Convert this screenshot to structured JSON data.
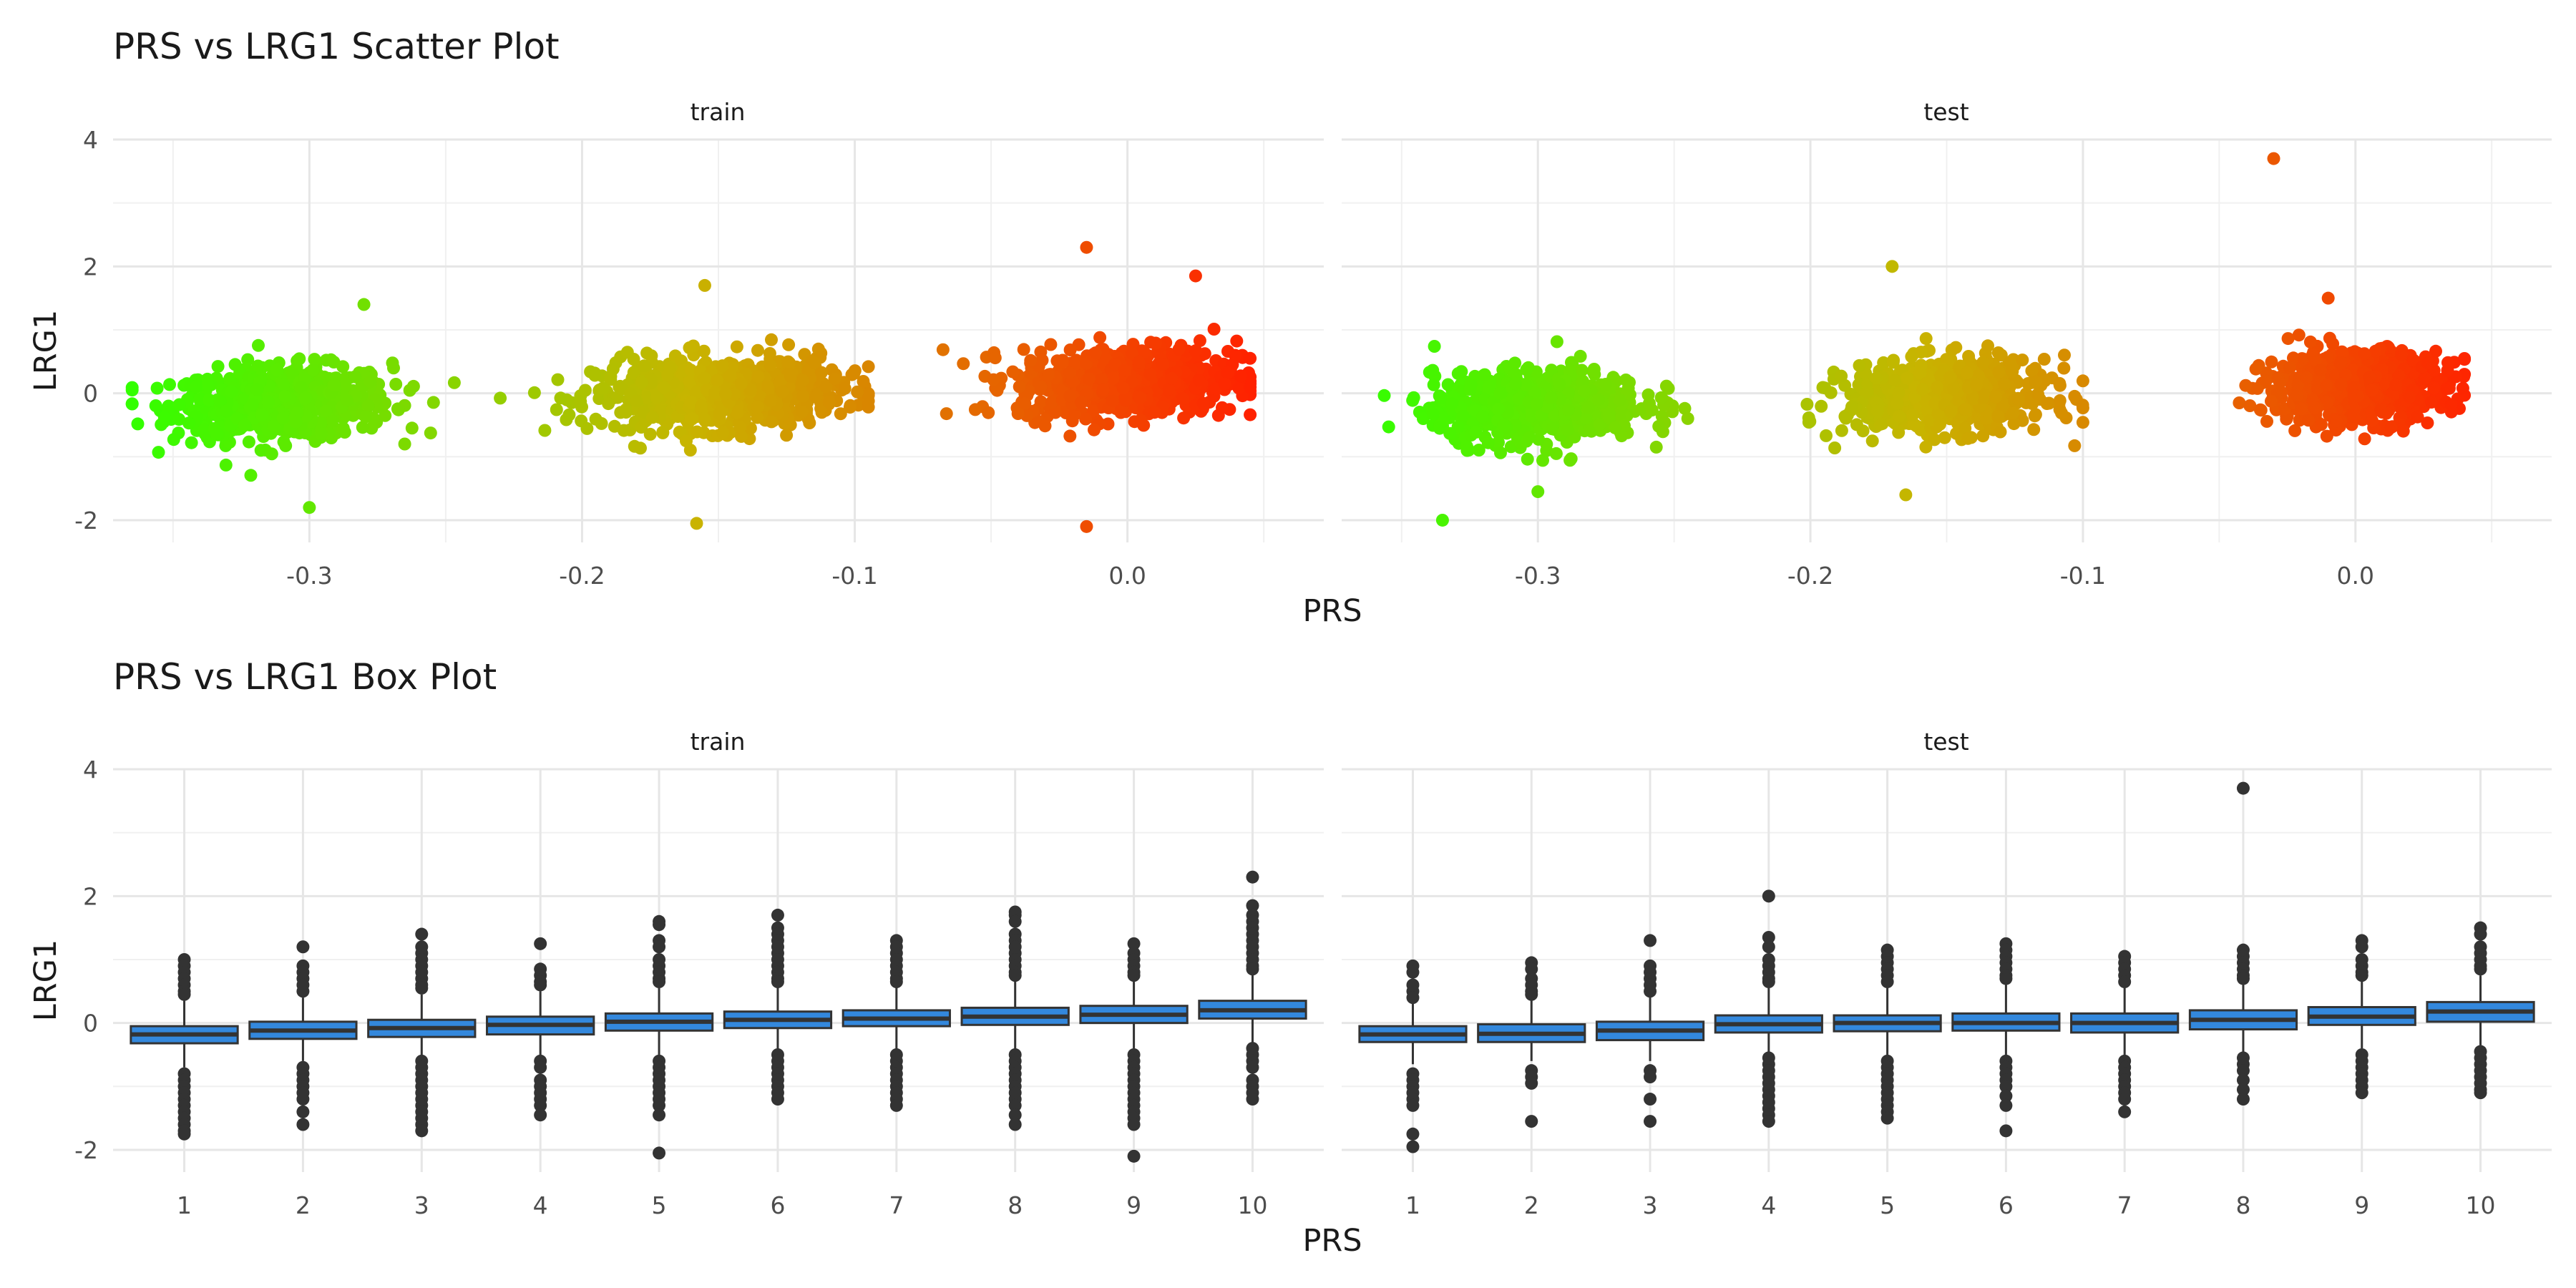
{
  "chart_data": [
    {
      "type": "scatter",
      "title": "PRS vs LRG1 Scatter Plot",
      "xlabel": "PRS",
      "ylabel": "LRG1",
      "xlim": [
        -0.372,
        0.072
      ],
      "ylim": [
        -2.35,
        4.0
      ],
      "x_ticks": [
        -0.3,
        -0.2,
        -0.1,
        0.0
      ],
      "x_tick_labels": [
        "-0.3",
        "-0.2",
        "-0.1",
        "0.0"
      ],
      "y_ticks": [
        -2,
        0,
        2,
        4
      ],
      "y_tick_labels": [
        "-2",
        "0",
        "2",
        "4"
      ],
      "grid": true,
      "color_gradient": [
        "#33ff00",
        "#c8b400",
        "#ff2200"
      ],
      "panels": [
        {
          "name": "train",
          "groups": [
            {
              "x_range": [
                -0.365,
                -0.245
              ],
              "center_x": -0.31,
              "center_y": -0.15
            },
            {
              "x_range": [
                -0.23,
                -0.095
              ],
              "center_x": -0.15,
              "center_y": 0.0
            },
            {
              "x_range": [
                -0.075,
                0.045
              ],
              "center_x": 0.0,
              "center_y": 0.2
            }
          ],
          "outliers": [
            {
              "x": -0.015,
              "y": 2.3
            },
            {
              "x": -0.015,
              "y": -2.1
            },
            {
              "x": -0.158,
              "y": -2.05
            },
            {
              "x": -0.3,
              "y": -1.8
            },
            {
              "x": 0.025,
              "y": 1.85
            },
            {
              "x": -0.155,
              "y": 1.7
            },
            {
              "x": -0.28,
              "y": 1.4
            }
          ]
        },
        {
          "name": "test",
          "groups": [
            {
              "x_range": [
                -0.36,
                -0.245
              ],
              "center_x": -0.3,
              "center_y": -0.2
            },
            {
              "x_range": [
                -0.21,
                -0.1
              ],
              "center_x": -0.15,
              "center_y": -0.05
            },
            {
              "x_range": [
                -0.06,
                0.04
              ],
              "center_x": 0.0,
              "center_y": 0.1
            }
          ],
          "outliers": [
            {
              "x": -0.03,
              "y": 3.7
            },
            {
              "x": -0.17,
              "y": 2.0
            },
            {
              "x": -0.335,
              "y": -2.0
            },
            {
              "x": -0.3,
              "y": -1.55
            },
            {
              "x": -0.165,
              "y": -1.6
            },
            {
              "x": -0.01,
              "y": 1.5
            }
          ]
        }
      ]
    },
    {
      "type": "box",
      "title": "PRS vs LRG1 Box Plot",
      "xlabel": "PRS",
      "ylabel": "LRG1",
      "categories": [
        "1",
        "2",
        "3",
        "4",
        "5",
        "6",
        "7",
        "8",
        "9",
        "10"
      ],
      "ylim": [
        -2.35,
        4.0
      ],
      "y_ticks": [
        -2,
        0,
        2,
        4
      ],
      "y_tick_labels": [
        "-2",
        "0",
        "2",
        "4"
      ],
      "box_color": "#3388dd",
      "grid": true,
      "panels": [
        {
          "name": "train",
          "boxes": [
            {
              "q1": -0.32,
              "median": -0.18,
              "q3": -0.05,
              "whisker_low": -0.7,
              "whisker_high": 0.35,
              "outliers": [
                1.0,
                0.9,
                0.8,
                0.7,
                0.6,
                0.5,
                0.45,
                -0.8,
                -0.9,
                -1.0,
                -1.1,
                -1.2,
                -1.3,
                -1.4,
                -1.5,
                -1.6,
                -1.7,
                -1.75
              ]
            },
            {
              "q1": -0.25,
              "median": -0.12,
              "q3": 0.02,
              "whisker_low": -0.6,
              "whisker_high": 0.4,
              "outliers": [
                1.2,
                0.9,
                0.8,
                0.7,
                0.6,
                0.5,
                -0.7,
                -0.8,
                -0.9,
                -1.0,
                -1.1,
                -1.2,
                -1.4,
                -1.6
              ]
            },
            {
              "q1": -0.22,
              "median": -0.08,
              "q3": 0.05,
              "whisker_low": -0.55,
              "whisker_high": 0.45,
              "outliers": [
                1.4,
                1.2,
                1.1,
                1.0,
                0.9,
                0.8,
                0.7,
                0.6,
                0.55,
                -0.6,
                -0.7,
                -0.8,
                -0.9,
                -1.0,
                -1.1,
                -1.2,
                -1.3,
                -1.4,
                -1.5,
                -1.6,
                -1.7
              ]
            },
            {
              "q1": -0.18,
              "median": -0.03,
              "q3": 0.1,
              "whisker_low": -0.55,
              "whisker_high": 0.5,
              "outliers": [
                1.25,
                0.85,
                0.75,
                0.65,
                0.6,
                -0.6,
                -0.7,
                -0.9,
                -1.0,
                -1.1,
                -1.2,
                -1.3,
                -1.45
              ]
            },
            {
              "q1": -0.12,
              "median": 0.02,
              "q3": 0.15,
              "whisker_low": -0.5,
              "whisker_high": 0.55,
              "outliers": [
                1.6,
                1.55,
                1.3,
                1.2,
                1.0,
                0.9,
                0.8,
                0.7,
                0.65,
                -0.6,
                -0.7,
                -0.8,
                -0.9,
                -1.0,
                -1.1,
                -1.2,
                -1.3,
                -1.45,
                -2.05
              ]
            },
            {
              "q1": -0.08,
              "median": 0.05,
              "q3": 0.18,
              "whisker_low": -0.45,
              "whisker_high": 0.6,
              "outliers": [
                1.7,
                1.5,
                1.4,
                1.3,
                1.2,
                1.1,
                1.0,
                0.9,
                0.8,
                0.7,
                0.65,
                -0.5,
                -0.6,
                -0.7,
                -0.8,
                -0.9,
                -1.0,
                -1.1,
                -1.2
              ]
            },
            {
              "q1": -0.05,
              "median": 0.07,
              "q3": 0.2,
              "whisker_low": -0.45,
              "whisker_high": 0.6,
              "outliers": [
                1.3,
                1.2,
                1.1,
                1.0,
                0.9,
                0.8,
                0.7,
                0.65,
                -0.5,
                -0.6,
                -0.7,
                -0.8,
                -0.9,
                -1.0,
                -1.1,
                -1.2,
                -1.3
              ]
            },
            {
              "q1": -0.03,
              "median": 0.1,
              "q3": 0.24,
              "whisker_low": -0.45,
              "whisker_high": 0.7,
              "outliers": [
                1.75,
                1.7,
                1.6,
                1.4,
                1.3,
                1.2,
                1.1,
                1.0,
                0.9,
                0.8,
                0.75,
                -0.5,
                -0.6,
                -0.7,
                -0.8,
                -0.9,
                -1.0,
                -1.1,
                -1.2,
                -1.3,
                -1.45,
                -1.6
              ]
            },
            {
              "q1": 0.0,
              "median": 0.13,
              "q3": 0.27,
              "whisker_low": -0.4,
              "whisker_high": 0.7,
              "outliers": [
                1.25,
                1.1,
                1.0,
                0.9,
                0.8,
                0.75,
                -0.5,
                -0.6,
                -0.7,
                -0.8,
                -0.9,
                -1.0,
                -1.1,
                -1.2,
                -1.3,
                -1.4,
                -1.5,
                -1.6,
                -2.1
              ]
            },
            {
              "q1": 0.07,
              "median": 0.2,
              "q3": 0.35,
              "whisker_low": -0.35,
              "whisker_high": 0.8,
              "outliers": [
                2.3,
                1.85,
                1.7,
                1.6,
                1.5,
                1.4,
                1.3,
                1.2,
                1.1,
                1.0,
                0.9,
                0.85,
                -0.4,
                -0.5,
                -0.6,
                -0.7,
                -0.9,
                -1.0,
                -1.1,
                -1.2
              ]
            }
          ]
        },
        {
          "name": "test",
          "boxes": [
            {
              "q1": -0.3,
              "median": -0.18,
              "q3": -0.05,
              "whisker_low": -0.65,
              "whisker_high": 0.35,
              "outliers": [
                0.9,
                0.8,
                0.6,
                0.5,
                0.4,
                -0.8,
                -0.9,
                -1.0,
                -1.1,
                -1.2,
                -1.3,
                -1.75,
                -1.95
              ]
            },
            {
              "q1": -0.3,
              "median": -0.17,
              "q3": -0.02,
              "whisker_low": -0.6,
              "whisker_high": 0.4,
              "outliers": [
                0.95,
                0.85,
                0.7,
                0.6,
                0.5,
                0.45,
                -0.75,
                -0.85,
                -0.95,
                -1.55
              ]
            },
            {
              "q1": -0.27,
              "median": -0.12,
              "q3": 0.02,
              "whisker_low": -0.6,
              "whisker_high": 0.45,
              "outliers": [
                1.3,
                0.9,
                0.8,
                0.7,
                0.6,
                0.5,
                -0.75,
                -0.85,
                -1.2,
                -1.55
              ]
            },
            {
              "q1": -0.15,
              "median": -0.02,
              "q3": 0.12,
              "whisker_low": -0.5,
              "whisker_high": 0.55,
              "outliers": [
                2.0,
                1.35,
                1.2,
                1.0,
                0.9,
                0.8,
                0.7,
                0.65,
                -0.55,
                -0.65,
                -0.75,
                -0.85,
                -0.95,
                -1.05,
                -1.15,
                -1.25,
                -1.35,
                -1.45,
                -1.55
              ]
            },
            {
              "q1": -0.13,
              "median": 0.0,
              "q3": 0.12,
              "whisker_low": -0.5,
              "whisker_high": 0.55,
              "outliers": [
                1.15,
                1.05,
                0.95,
                0.85,
                0.75,
                0.65,
                -0.6,
                -0.7,
                -0.8,
                -0.9,
                -1.0,
                -1.1,
                -1.2,
                -1.3,
                -1.4,
                -1.5
              ]
            },
            {
              "q1": -0.12,
              "median": 0.0,
              "q3": 0.15,
              "whisker_low": -0.5,
              "whisker_high": 0.6,
              "outliers": [
                1.25,
                1.15,
                1.05,
                0.95,
                0.85,
                0.75,
                0.7,
                -0.6,
                -0.7,
                -0.8,
                -0.9,
                -1.0,
                -1.15,
                -1.3,
                -1.7
              ]
            },
            {
              "q1": -0.15,
              "median": 0.0,
              "q3": 0.15,
              "whisker_low": -0.5,
              "whisker_high": 0.55,
              "outliers": [
                1.05,
                0.95,
                0.85,
                0.75,
                0.65,
                -0.6,
                -0.7,
                -0.8,
                -0.9,
                -1.0,
                -1.1,
                -1.2,
                -1.4
              ]
            },
            {
              "q1": -0.1,
              "median": 0.05,
              "q3": 0.2,
              "whisker_low": -0.45,
              "whisker_high": 0.6,
              "outliers": [
                3.7,
                1.15,
                1.05,
                0.95,
                0.85,
                0.75,
                0.7,
                -0.55,
                -0.65,
                -0.75,
                -0.9,
                -1.05,
                -1.2
              ]
            },
            {
              "q1": -0.03,
              "median": 0.1,
              "q3": 0.25,
              "whisker_low": -0.4,
              "whisker_high": 0.65,
              "outliers": [
                1.3,
                1.2,
                1.0,
                0.9,
                0.8,
                0.75,
                -0.5,
                -0.6,
                -0.7,
                -0.8,
                -0.9,
                -1.0,
                -1.1
              ]
            },
            {
              "q1": 0.02,
              "median": 0.18,
              "q3": 0.33,
              "whisker_low": -0.35,
              "whisker_high": 0.75,
              "outliers": [
                1.5,
                1.4,
                1.2,
                1.1,
                1.0,
                0.9,
                0.85,
                -0.45,
                -0.55,
                -0.65,
                -0.75,
                -0.85,
                -0.95,
                -1.05,
                -1.1
              ]
            }
          ]
        }
      ]
    }
  ]
}
